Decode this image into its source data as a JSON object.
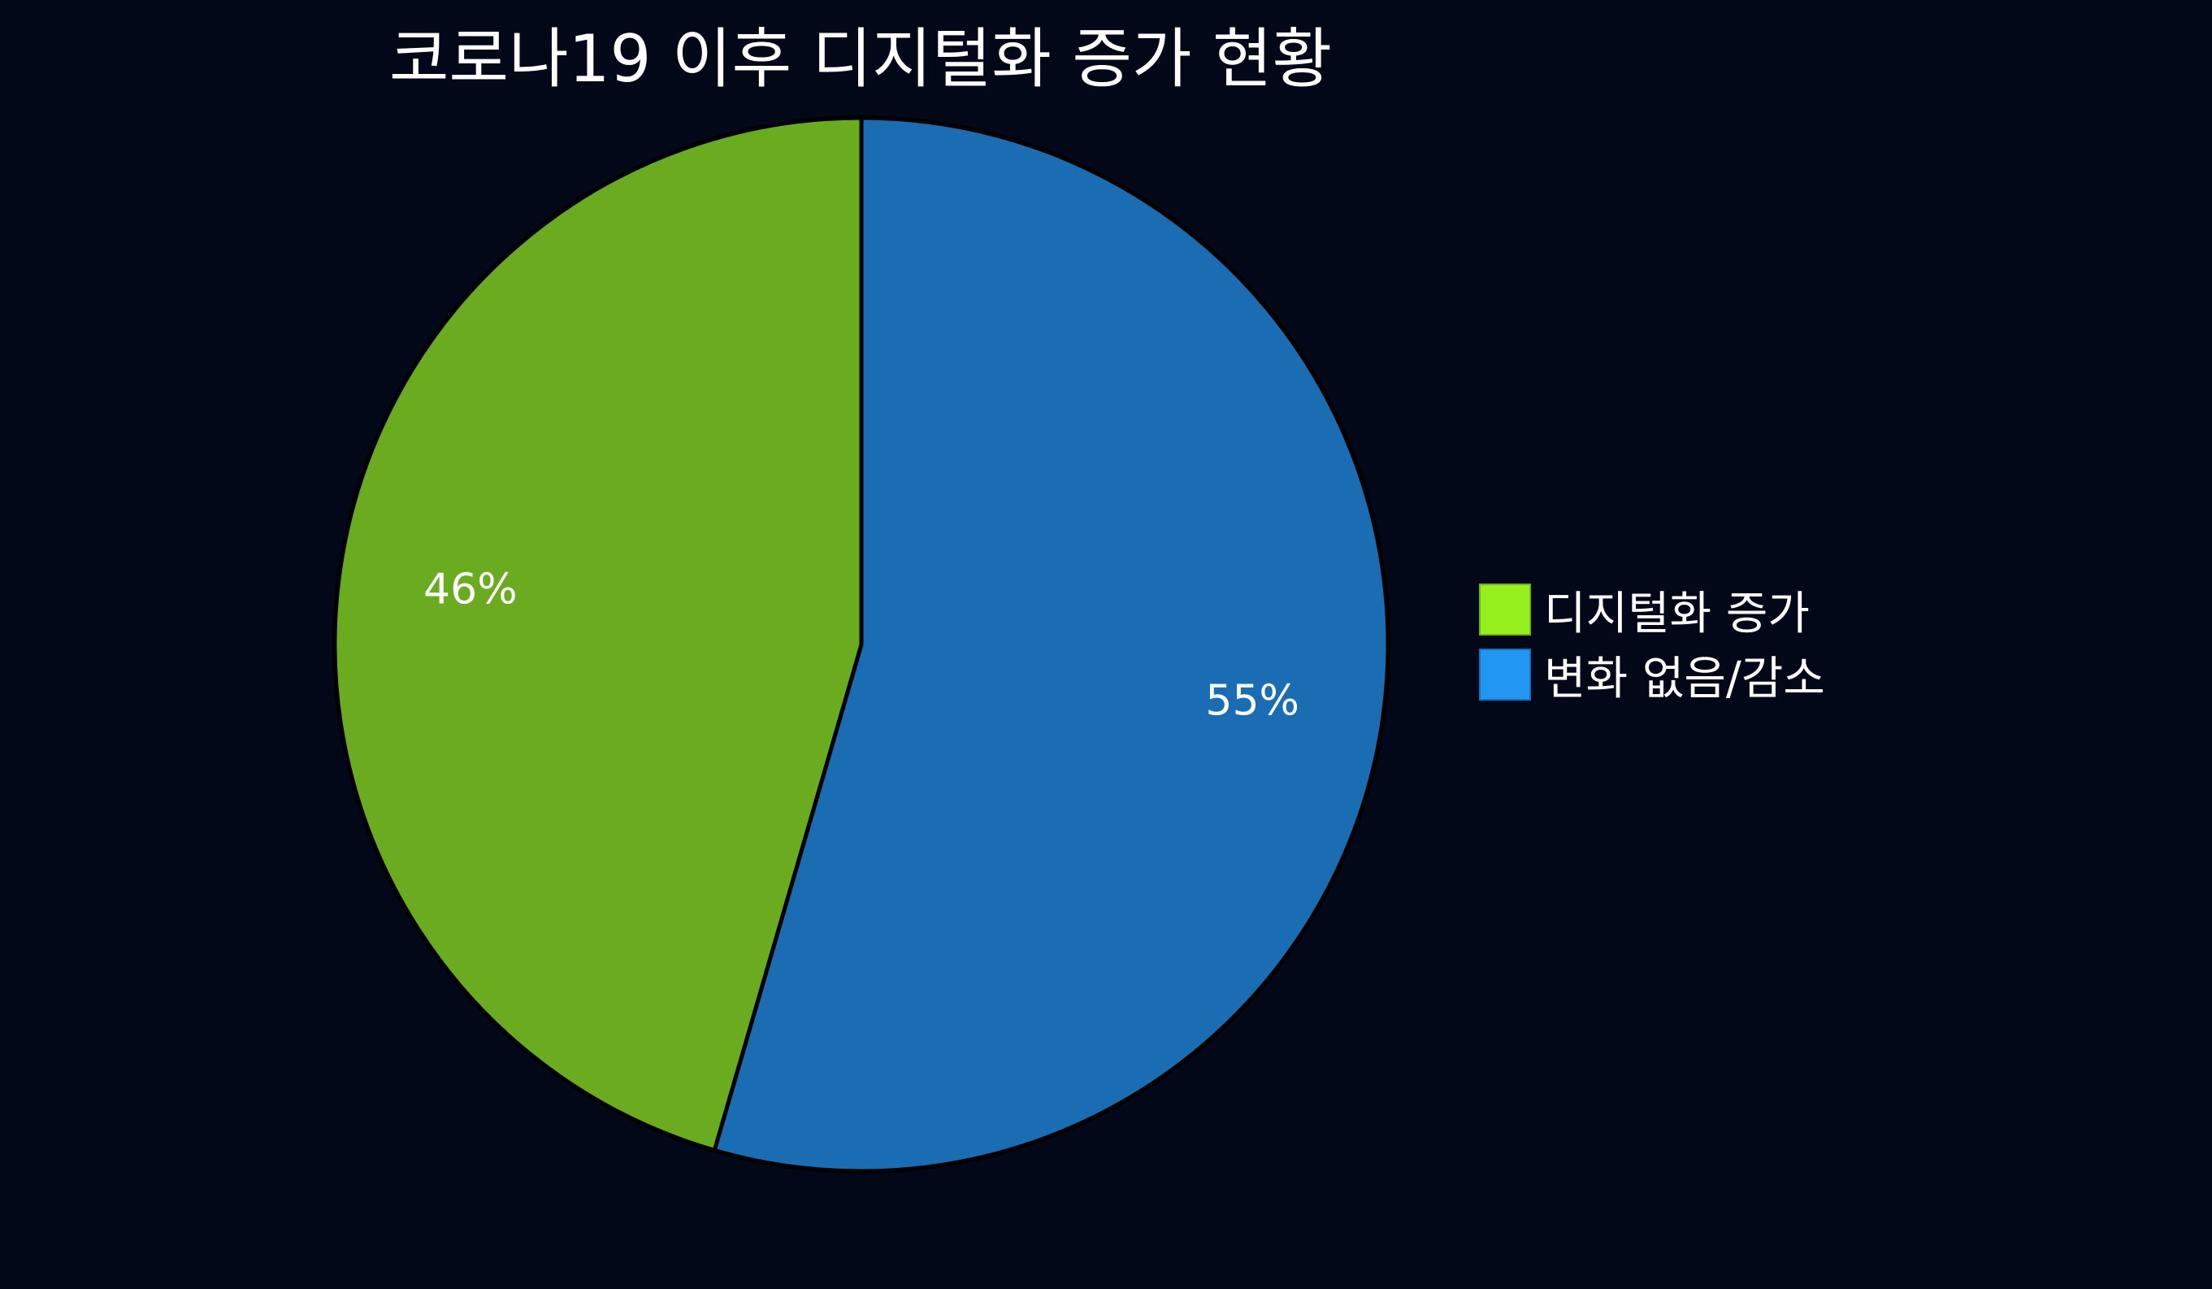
{
  "chart_data": {
    "type": "pie",
    "title": "코로나19 이후 디지털화 증가 현황",
    "categories": [
      "디지털화 증가",
      "변화 없음/감소"
    ],
    "values": [
      45.5,
      54.5
    ],
    "data_labels": [
      "46%",
      "55%"
    ],
    "colors": [
      "#96f01e",
      "#2196f3"
    ],
    "slice_colors": [
      "#6aab20",
      "#1b6db3"
    ],
    "legend_position": "right"
  }
}
